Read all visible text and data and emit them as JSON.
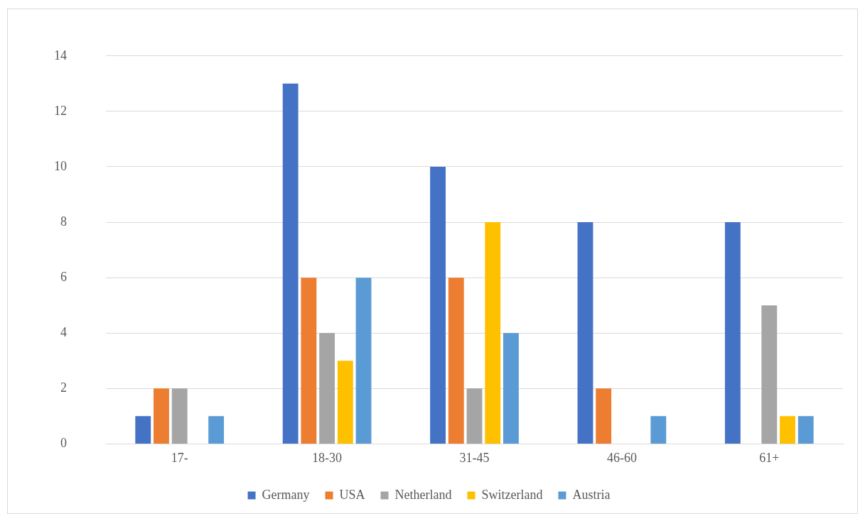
{
  "chart_data": {
    "type": "bar",
    "categories": [
      "17-",
      "18-30",
      "31-45",
      "46-60",
      "61+"
    ],
    "series": [
      {
        "name": "Germany",
        "color": "#4472c4",
        "values": [
          1,
          13,
          10,
          8,
          8
        ]
      },
      {
        "name": "USA",
        "color": "#ed7d31",
        "values": [
          2,
          6,
          6,
          2,
          0
        ]
      },
      {
        "name": "Netherland",
        "color": "#a5a5a5",
        "values": [
          2,
          4,
          2,
          0,
          5
        ]
      },
      {
        "name": "Switzerland",
        "color": "#ffc000",
        "values": [
          0,
          3,
          8,
          0,
          1
        ]
      },
      {
        "name": "Austria",
        "color": "#5b9bd5",
        "values": [
          1,
          6,
          4,
          1,
          1
        ]
      }
    ],
    "ylim": [
      0,
      14
    ],
    "yticks": [
      0,
      2,
      4,
      6,
      8,
      10,
      12,
      14
    ],
    "grid": "y",
    "legend": "bottom"
  }
}
